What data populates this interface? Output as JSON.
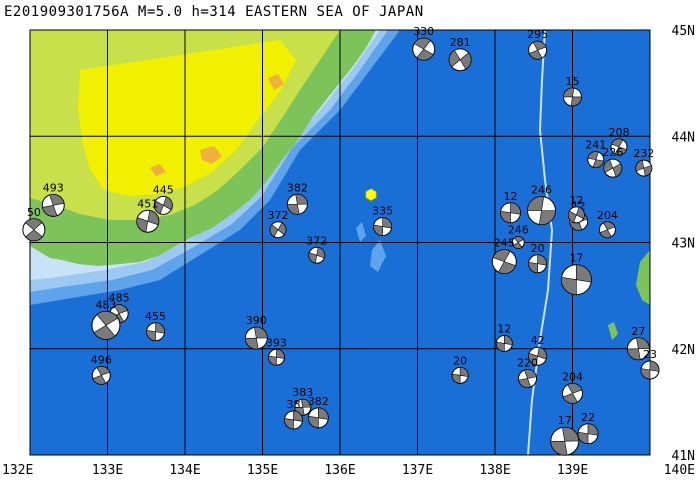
{
  "title": "E201909301756A M=5.0 h=314 EASTERN SEA OF JAPAN",
  "lon_labels": [
    "132E",
    "133E",
    "134E",
    "135E",
    "136E",
    "137E",
    "138E",
    "139E",
    "140E"
  ],
  "lat_labels": [
    "45N",
    "44N",
    "43N",
    "42N",
    "41N"
  ],
  "extent": {
    "lon": [
      132,
      140
    ],
    "lat": [
      41,
      45
    ]
  },
  "colors": {
    "deep_sea": "#1a6fd6",
    "shelf": "#5ea4ec",
    "shallow": "#9cc8f2",
    "coast": "#c8e2f8",
    "land_low": "#7cc45a",
    "land_mid": "#c8e04a",
    "land_high": "#f0f000",
    "mountain": "#f0b040",
    "grid": "#000000",
    "epicenter": "#ffff00"
  },
  "events": [
    {
      "depth": "330",
      "lon": 137.08,
      "lat": 44.82,
      "size": 11,
      "rot": 30
    },
    {
      "depth": "281",
      "lon": 137.55,
      "lat": 44.72,
      "size": 11,
      "rot": -40
    },
    {
      "depth": "295",
      "lon": 138.55,
      "lat": 44.81,
      "size": 9,
      "rot": 60
    },
    {
      "depth": "15",
      "lon": 139.0,
      "lat": 44.37,
      "size": 9,
      "rot": 0
    },
    {
      "depth": "208",
      "lon": 139.6,
      "lat": 43.9,
      "size": 8,
      "rot": 20
    },
    {
      "depth": "232",
      "lon": 139.92,
      "lat": 43.7,
      "size": 8,
      "rot": -20
    },
    {
      "depth": "241",
      "lon": 139.3,
      "lat": 43.78,
      "size": 8,
      "rot": 10
    },
    {
      "depth": "226",
      "lon": 139.52,
      "lat": 43.7,
      "size": 9,
      "rot": -30
    },
    {
      "depth": "493",
      "lon": 132.3,
      "lat": 43.35,
      "size": 11,
      "rot": 70
    },
    {
      "depth": "445",
      "lon": 133.72,
      "lat": 43.35,
      "size": 9,
      "rot": 110
    },
    {
      "depth": "451",
      "lon": 133.52,
      "lat": 43.2,
      "size": 11,
      "rot": 100
    },
    {
      "depth": "50",
      "lon": 132.05,
      "lat": 43.12,
      "size": 11,
      "rot": 40
    },
    {
      "depth": "382",
      "lon": 135.45,
      "lat": 43.36,
      "size": 10,
      "rot": 80
    },
    {
      "depth": "372",
      "lon": 135.2,
      "lat": 43.12,
      "size": 8,
      "rot": 120
    },
    {
      "depth": "335",
      "lon": 136.55,
      "lat": 43.15,
      "size": 9,
      "rot": 90
    },
    {
      "depth": "372",
      "lon": 135.7,
      "lat": 42.88,
      "size": 8,
      "rot": 100
    },
    {
      "depth": "12",
      "lon": 138.2,
      "lat": 43.28,
      "size": 10,
      "rot": 90
    },
    {
      "depth": "246",
      "lon": 138.6,
      "lat": 43.3,
      "size": 14,
      "rot": 0
    },
    {
      "depth": "12",
      "lon": 139.08,
      "lat": 43.2,
      "size": 9,
      "rot": 70
    },
    {
      "depth": "12",
      "lon": 139.05,
      "lat": 43.26,
      "size": 8,
      "rot": 110
    },
    {
      "depth": "204",
      "lon": 139.45,
      "lat": 43.12,
      "size": 8,
      "rot": 60
    },
    {
      "depth": "246",
      "lon": 138.3,
      "lat": 43.0,
      "size": 6,
      "rot": 50
    },
    {
      "depth": "245",
      "lon": 138.12,
      "lat": 42.82,
      "size": 12,
      "rot": 20
    },
    {
      "depth": "20",
      "lon": 138.55,
      "lat": 42.8,
      "size": 9,
      "rot": 90
    },
    {
      "depth": "17",
      "lon": 139.05,
      "lat": 42.65,
      "size": 15,
      "rot": 90
    },
    {
      "depth": "485",
      "lon": 133.15,
      "lat": 42.33,
      "size": 9,
      "rot": 60
    },
    {
      "depth": "483",
      "lon": 132.98,
      "lat": 42.22,
      "size": 14,
      "rot": 50
    },
    {
      "depth": "455",
      "lon": 133.62,
      "lat": 42.16,
      "size": 9,
      "rot": 90
    },
    {
      "depth": "390",
      "lon": 134.92,
      "lat": 42.1,
      "size": 11,
      "rot": 80
    },
    {
      "depth": "393",
      "lon": 135.18,
      "lat": 41.92,
      "size": 8,
      "rot": 90
    },
    {
      "depth": "496",
      "lon": 132.92,
      "lat": 41.75,
      "size": 9,
      "rot": 60
    },
    {
      "depth": "12",
      "lon": 138.12,
      "lat": 42.05,
      "size": 8,
      "rot": 90
    },
    {
      "depth": "42",
      "lon": 138.55,
      "lat": 41.93,
      "size": 9,
      "rot": 100
    },
    {
      "depth": "27",
      "lon": 139.85,
      "lat": 42.0,
      "size": 11,
      "rot": 80
    },
    {
      "depth": "23",
      "lon": 140.0,
      "lat": 41.8,
      "size": 9,
      "rot": 90
    },
    {
      "depth": "20",
      "lon": 137.55,
      "lat": 41.75,
      "size": 8,
      "rot": 90
    },
    {
      "depth": "220",
      "lon": 138.42,
      "lat": 41.72,
      "size": 9,
      "rot": 70
    },
    {
      "depth": "204",
      "lon": 139.0,
      "lat": 41.58,
      "size": 10,
      "rot": 60
    },
    {
      "depth": "383",
      "lon": 135.52,
      "lat": 41.45,
      "size": 8,
      "rot": 80
    },
    {
      "depth": "382",
      "lon": 135.72,
      "lat": 41.35,
      "size": 10,
      "rot": 90
    },
    {
      "depth": "38",
      "lon": 135.4,
      "lat": 41.33,
      "size": 9,
      "rot": 90
    },
    {
      "depth": "17",
      "lon": 138.9,
      "lat": 41.13,
      "size": 14,
      "rot": 80
    },
    {
      "depth": "22",
      "lon": 139.2,
      "lat": 41.2,
      "size": 10,
      "rot": 90
    }
  ],
  "epicenter": {
    "lon": 136.4,
    "lat": 43.45
  }
}
